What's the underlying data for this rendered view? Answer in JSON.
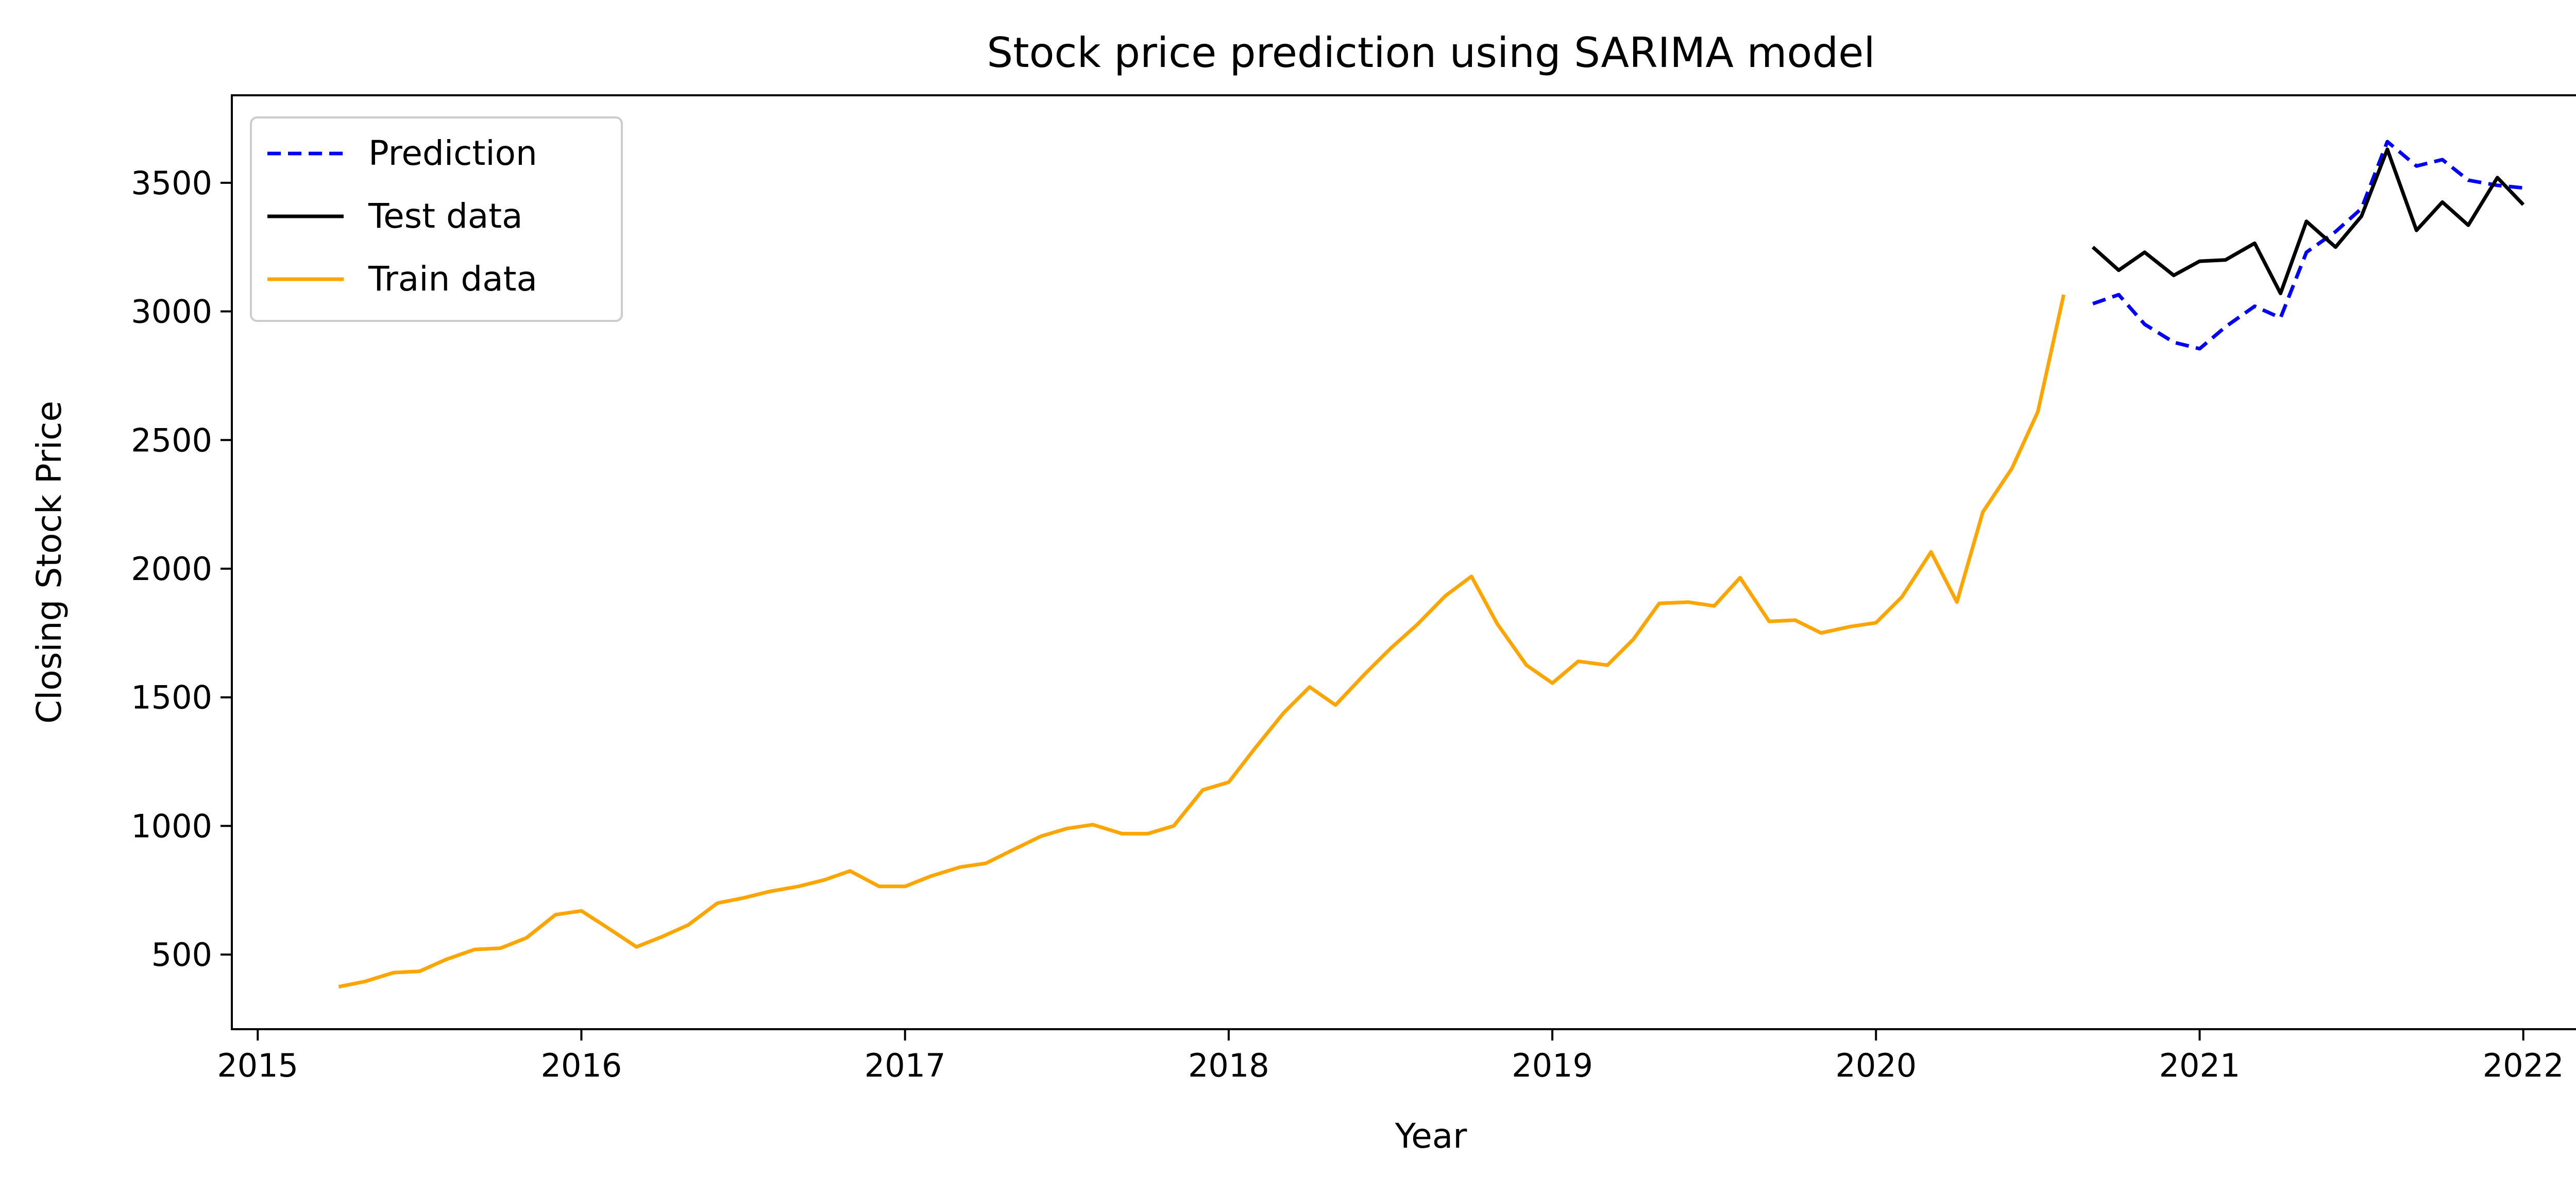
{
  "chart_data": {
    "type": "line",
    "title": "Stock price prediction using SARIMA model",
    "xlabel": "Year",
    "ylabel": "Closing Stock Price",
    "xlim": [
      2014.92,
      2022.33
    ],
    "ylim": [
      210,
      3840
    ],
    "x_ticks": [
      2015,
      2016,
      2017,
      2018,
      2019,
      2020,
      2021,
      2022
    ],
    "x_tick_labels": [
      "2015",
      "2016",
      "2017",
      "2018",
      "2019",
      "2020",
      "2021",
      "2022"
    ],
    "y_ticks": [
      500,
      1000,
      1500,
      2000,
      2500,
      3000,
      3500
    ],
    "y_tick_labels": [
      "500",
      "1000",
      "1500",
      "2000",
      "2500",
      "3000",
      "3500"
    ],
    "grid": false,
    "legend_position": "upper-left",
    "series": [
      {
        "name": "Prediction",
        "color": "#0000ff",
        "style": "dashed",
        "x": [
          2020.67,
          2020.75,
          2020.83,
          2020.92,
          2021.0,
          2021.08,
          2021.17,
          2021.25,
          2021.33,
          2021.42,
          2021.5,
          2021.58,
          2021.67,
          2021.75,
          2021.83,
          2021.92,
          2022.0
        ],
        "y": [
          3030,
          3065,
          2950,
          2880,
          2855,
          2940,
          3020,
          2975,
          3230,
          3310,
          3400,
          3660,
          3565,
          3590,
          3510,
          3490,
          3480
        ]
      },
      {
        "name": "Test data",
        "color": "#000000",
        "style": "solid",
        "x": [
          2020.67,
          2020.75,
          2020.83,
          2020.92,
          2021.0,
          2021.08,
          2021.17,
          2021.25,
          2021.33,
          2021.42,
          2021.5,
          2021.58,
          2021.67,
          2021.75,
          2021.83,
          2021.92,
          2022.0
        ],
        "y": [
          3250,
          3160,
          3230,
          3140,
          3195,
          3200,
          3265,
          3070,
          3350,
          3250,
          3370,
          3630,
          3315,
          3425,
          3335,
          3520,
          3415
        ]
      },
      {
        "name": "Train data",
        "color": "#ffa500",
        "style": "solid",
        "x": [
          2015.25,
          2015.33,
          2015.42,
          2015.5,
          2015.58,
          2015.67,
          2015.75,
          2015.83,
          2015.92,
          2016.0,
          2016.08,
          2016.17,
          2016.25,
          2016.33,
          2016.42,
          2016.5,
          2016.58,
          2016.67,
          2016.75,
          2016.83,
          2016.92,
          2017.0,
          2017.08,
          2017.17,
          2017.25,
          2017.33,
          2017.42,
          2017.5,
          2017.58,
          2017.67,
          2017.75,
          2017.83,
          2017.92,
          2018.0,
          2018.08,
          2018.17,
          2018.25,
          2018.33,
          2018.42,
          2018.5,
          2018.58,
          2018.67,
          2018.75,
          2018.83,
          2018.92,
          2019.0,
          2019.08,
          2019.17,
          2019.25,
          2019.33,
          2019.42,
          2019.5,
          2019.58,
          2019.67,
          2019.75,
          2019.83,
          2019.92,
          2020.0,
          2020.08,
          2020.17,
          2020.25,
          2020.33,
          2020.42,
          2020.5,
          2020.58
        ],
        "y": [
          375,
          395,
          430,
          435,
          480,
          520,
          525,
          565,
          655,
          670,
          605,
          530,
          570,
          615,
          700,
          720,
          745,
          765,
          790,
          825,
          765,
          765,
          805,
          840,
          855,
          905,
          960,
          990,
          1005,
          970,
          970,
          1000,
          1140,
          1170,
          1300,
          1440,
          1540,
          1470,
          1590,
          1690,
          1780,
          1895,
          1970,
          1785,
          1625,
          1555,
          1640,
          1625,
          1725,
          1865,
          1870,
          1855,
          1965,
          1795,
          1800,
          1750,
          1775,
          1790,
          1890,
          2065,
          1870,
          2220,
          2390,
          2610,
          3065
        ]
      }
    ]
  }
}
